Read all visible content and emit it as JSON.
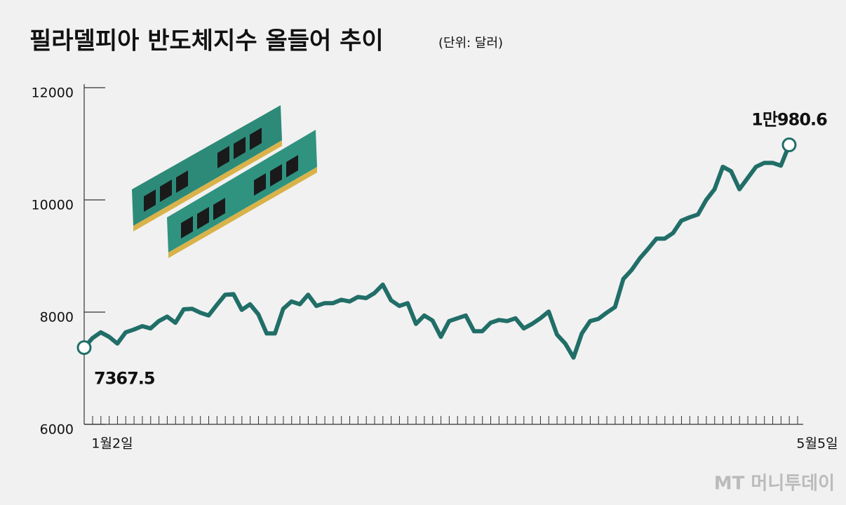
{
  "chart_data": {
    "type": "line",
    "title": "필라델피아 반도체지수 올들어 추이",
    "subtitle": "(단위: 달러)",
    "watermark": "MT 머니투데이",
    "categories": [
      "1월2일",
      null,
      null,
      null,
      null,
      null,
      null,
      null,
      null,
      null,
      null,
      null,
      null,
      null,
      null,
      null,
      null,
      null,
      null,
      null,
      null,
      null,
      null,
      null,
      null,
      null,
      null,
      null,
      null,
      null,
      null,
      null,
      null,
      null,
      null,
      null,
      null,
      null,
      null,
      null,
      null,
      null,
      null,
      null,
      null,
      null,
      null,
      null,
      null,
      null,
      null,
      null,
      null,
      null,
      null,
      null,
      null,
      null,
      null,
      null,
      null,
      null,
      null,
      null,
      null,
      null,
      null,
      null,
      null,
      null,
      null,
      null,
      null,
      null,
      null,
      null,
      null,
      null,
      null,
      null,
      null,
      null,
      null,
      null,
      null,
      "5월5일"
    ],
    "values": [
      7367.5,
      7537,
      7640,
      7560,
      7440,
      7640,
      7690,
      7750,
      7710,
      7840,
      7920,
      7810,
      8050,
      8060,
      7990,
      7940,
      8130,
      8310,
      8320,
      8040,
      8140,
      7960,
      7620,
      7620,
      8060,
      8190,
      8140,
      8310,
      8110,
      8160,
      8160,
      8220,
      8190,
      8270,
      8250,
      8340,
      8490,
      8210,
      8110,
      8160,
      7790,
      7940,
      7850,
      7560,
      7840,
      7890,
      7940,
      7660,
      7660,
      7810,
      7860,
      7840,
      7890,
      7710,
      7790,
      7890,
      8010,
      7600,
      7440,
      7190,
      7620,
      7840,
      7880,
      7990,
      8090,
      8590,
      8750,
      8960,
      9130,
      9310,
      9310,
      9410,
      9630,
      9690,
      9740,
      10000,
      10190,
      10590,
      10510,
      10190,
      10390,
      10590,
      10660,
      10660,
      10610,
      10980.6
    ],
    "value_labels": [
      "7367.5",
      null,
      null,
      null,
      null,
      null,
      null,
      null,
      null,
      null,
      null,
      null,
      null,
      null,
      null,
      null,
      null,
      null,
      null,
      null,
      null,
      null,
      null,
      null,
      null,
      null,
      null,
      null,
      null,
      null,
      null,
      null,
      null,
      null,
      null,
      null,
      null,
      null,
      null,
      null,
      null,
      null,
      null,
      null,
      null,
      null,
      null,
      null,
      null,
      null,
      null,
      null,
      null,
      null,
      null,
      null,
      null,
      null,
      null,
      null,
      null,
      null,
      null,
      null,
      null,
      null,
      null,
      null,
      null,
      null,
      null,
      null,
      null,
      null,
      null,
      null,
      null,
      null,
      null,
      null,
      null,
      null,
      null,
      null,
      null,
      "1만980.6"
    ],
    "color": "#216e68",
    "ylim": [
      6000,
      12000
    ],
    "yticks": [
      6000,
      8000,
      10000,
      12000
    ],
    "grid": false
  }
}
